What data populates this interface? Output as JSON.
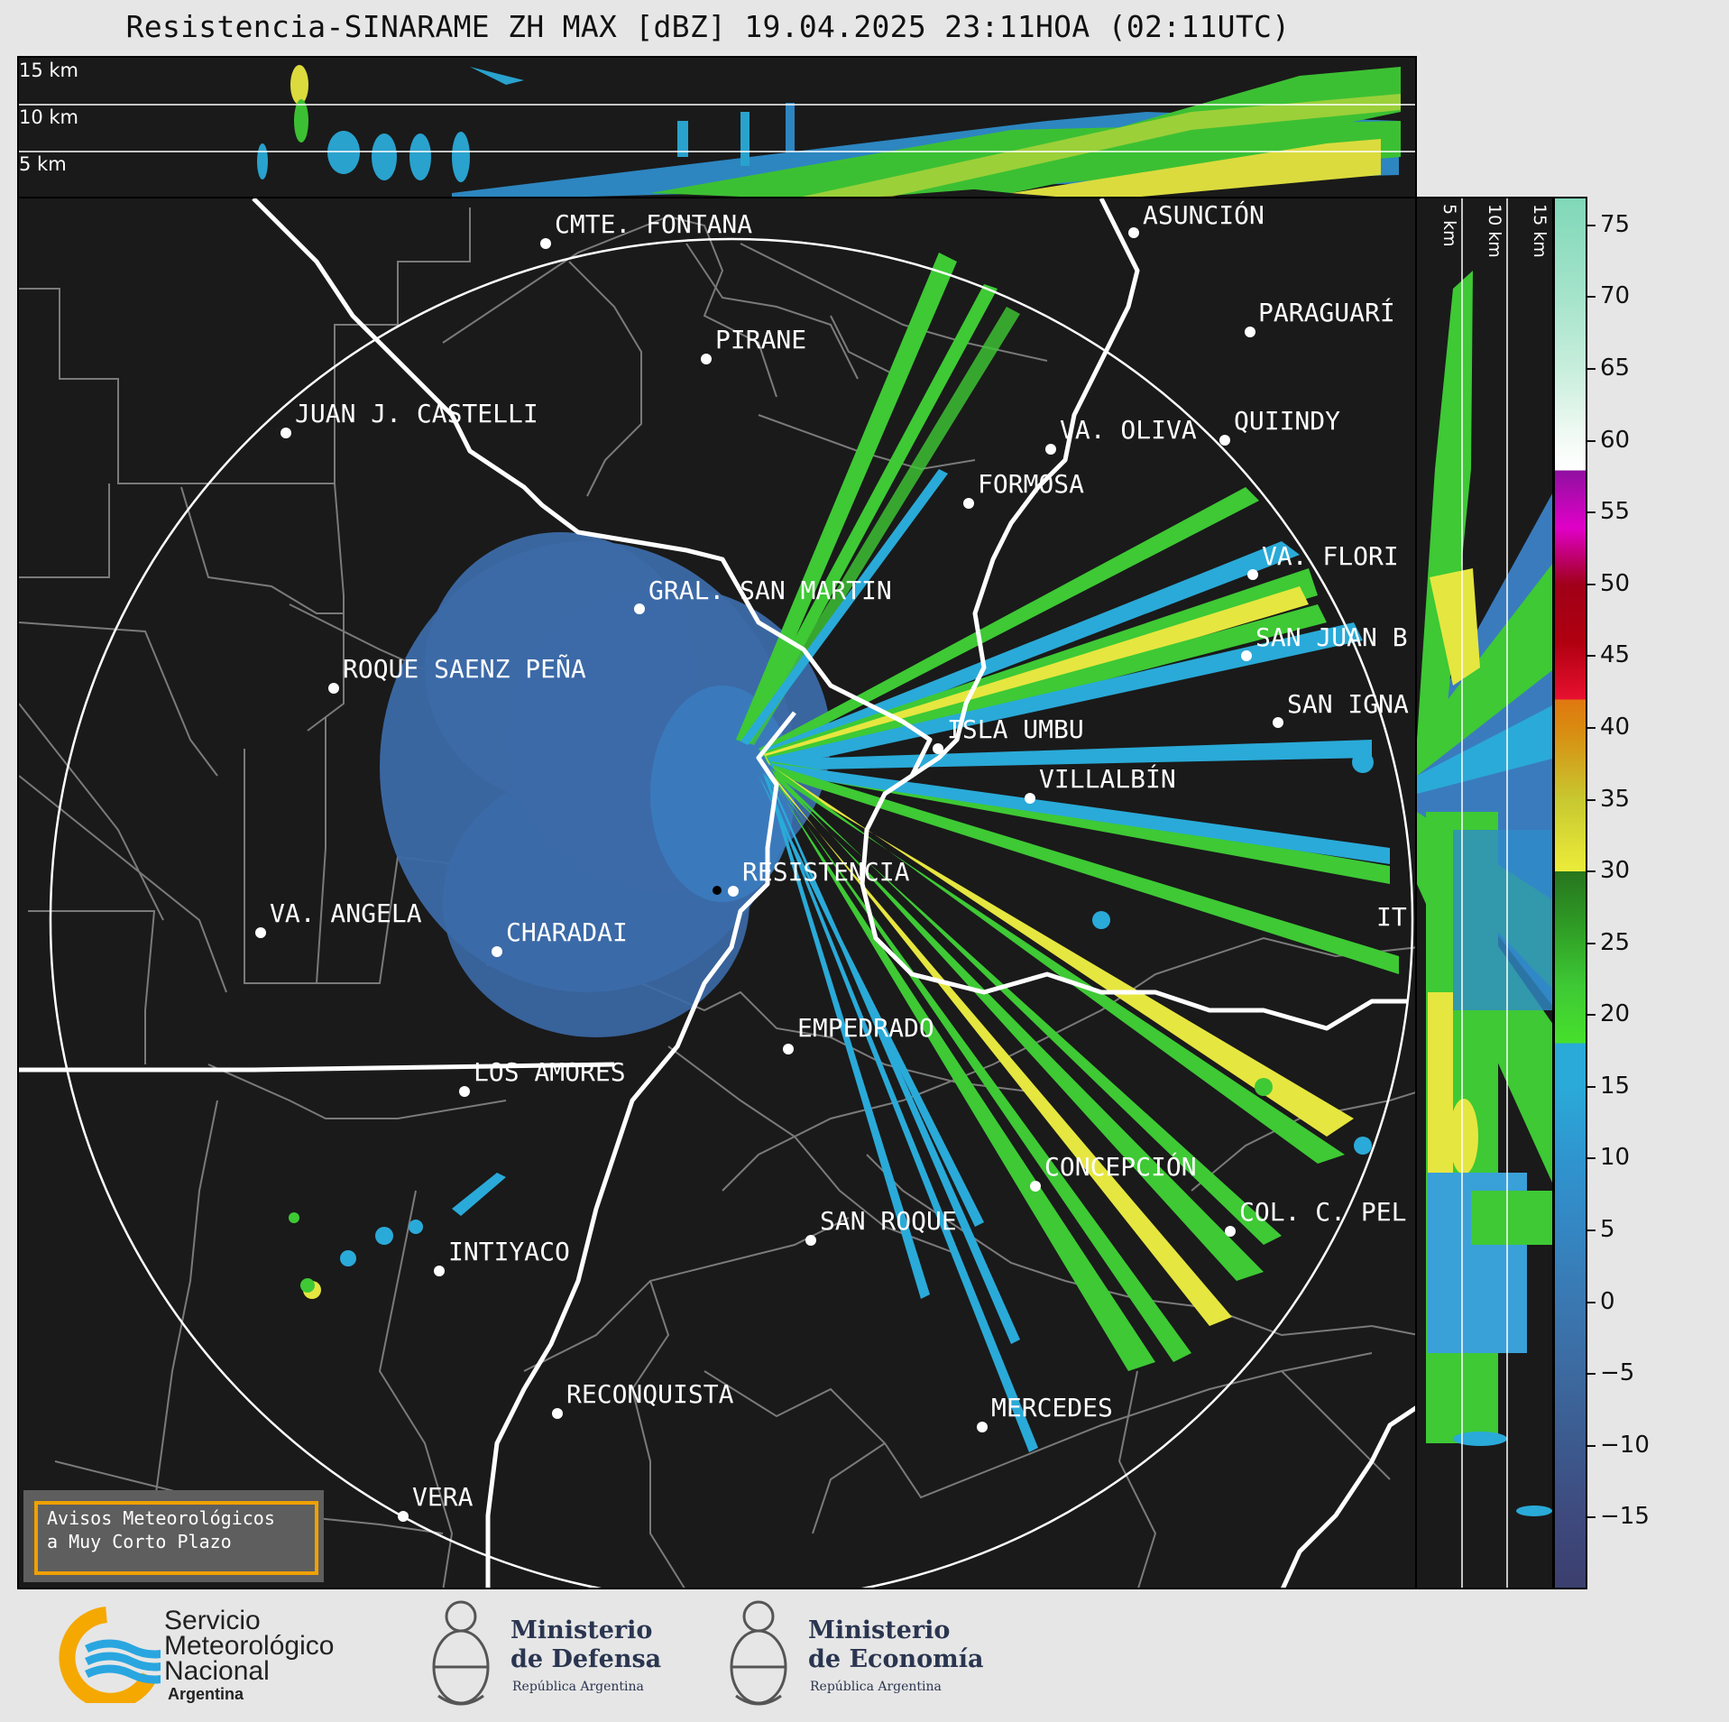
{
  "title": "Resistencia-SINARAME ZH MAX [dBZ] 19.04.2025 23:11HOA (02:11UTC)",
  "top_panel": {
    "height_labels": [
      "15 km",
      "10 km",
      "5 km"
    ]
  },
  "side_panel": {
    "height_labels": [
      "5 km",
      "10 km",
      "15 km"
    ]
  },
  "colorbar": {
    "ticks": [
      "75",
      "70",
      "65",
      "60",
      "55",
      "50",
      "45",
      "40",
      "35",
      "30",
      "25",
      "20",
      "15",
      "10",
      "5",
      "0",
      "−5",
      "−10",
      "−15"
    ],
    "range": [
      -20,
      77
    ],
    "colors": {
      "cyan_low": "#2aaad8",
      "green": "#3ec935",
      "yellow": "#e6e640",
      "orange": "#d98a10",
      "red": "#d01028",
      "magenta": "#d000d8",
      "white": "#ffffff",
      "teal": "#8fdcc0"
    }
  },
  "cities": [
    "CMTE. FONTANA",
    "ASUNCIÓN",
    "PIRANE",
    "PARAGUARÍ",
    "JUAN J. CASTELLI",
    "VA. OLIVA",
    "QUIINDY",
    "FORMOSA",
    "VA. FLORI",
    "GRAL. SAN MARTIN",
    "SAN JUAN B",
    "ROQUE SAENZ PEÑA",
    "SAN IGNA",
    "ISLA UMBU",
    "VILLALBÍN",
    "RESISTENCIA",
    "IT",
    "VA. ANGELA",
    "CHARADAI",
    "EMPEDRADO",
    "LOS AMORES",
    "CONCEPCIÓN",
    "COL. C. PEL",
    "SAN ROQUE",
    "INTIYACO",
    "RECONQUISTA",
    "MERCEDES",
    "VERA"
  ],
  "notice": {
    "line1": "Avisos Meteorológicos",
    "line2": "a Muy Corto Plazo"
  },
  "footer": {
    "smn": {
      "line1": "Servicio",
      "line2": "Meteorológico",
      "line3": "Nacional",
      "line4": "Argentina"
    },
    "defensa": {
      "line1": "Ministerio",
      "line2": "de Defensa",
      "line3": "República Argentina"
    },
    "economia": {
      "line1": "Ministerio",
      "line2": "de Economía",
      "line3": "República Argentina"
    }
  }
}
